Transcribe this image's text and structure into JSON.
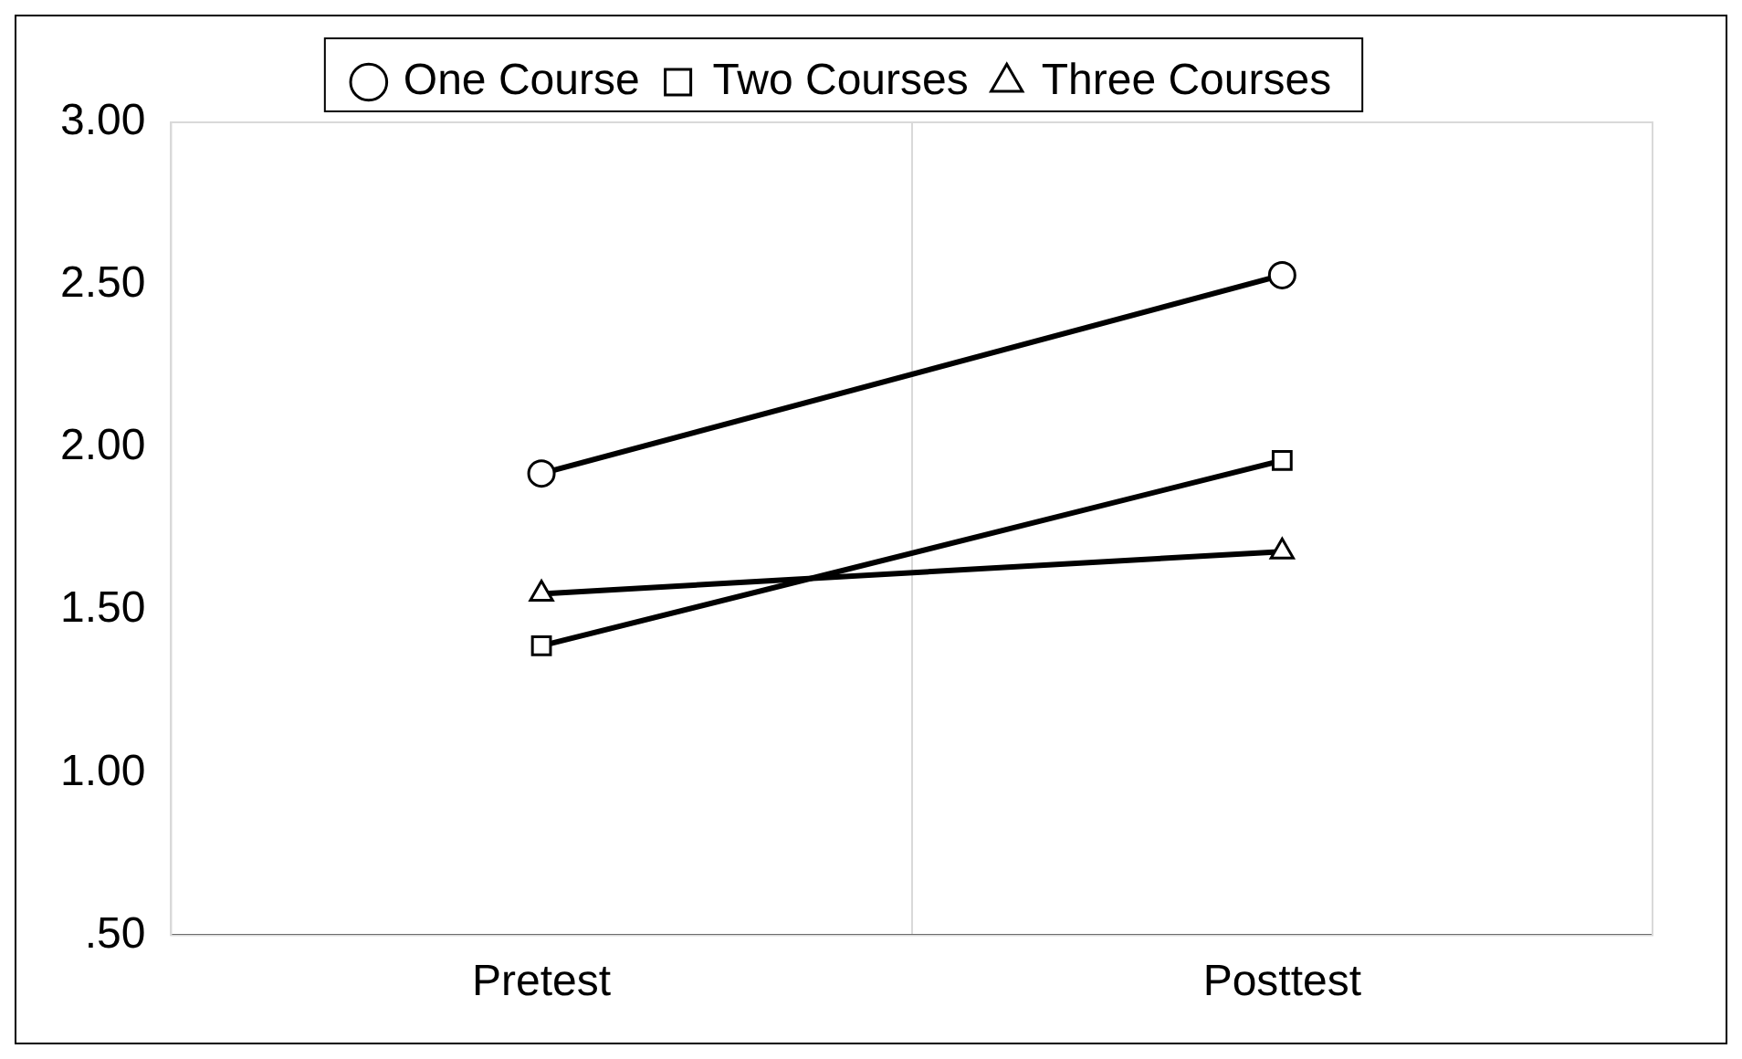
{
  "chart_data": {
    "type": "line",
    "categories": [
      "Pretest",
      "Posttest"
    ],
    "series": [
      {
        "name": "One Course",
        "color": "#000000",
        "marker": "circle",
        "values": [
          1.92,
          2.53
        ]
      },
      {
        "name": "Two Courses",
        "color": "#000000",
        "marker": "square",
        "values": [
          1.39,
          1.96
        ]
      },
      {
        "name": "Three Courses",
        "color": "#000000",
        "marker": "triangle",
        "values": [
          1.55,
          1.68
        ]
      }
    ],
    "ylim": [
      0.5,
      3
    ],
    "yticks": [
      {
        "value": 0.5,
        "label": ".50"
      },
      {
        "value": 1,
        "label": "1.00"
      },
      {
        "value": 1.5,
        "label": "1.50"
      },
      {
        "value": 2,
        "label": "2.00"
      },
      {
        "value": 2.5,
        "label": "2.50"
      },
      {
        "value": 3,
        "label": "3.00"
      }
    ],
    "grid": "x",
    "legend": "top",
    "line_style": "solid"
  }
}
